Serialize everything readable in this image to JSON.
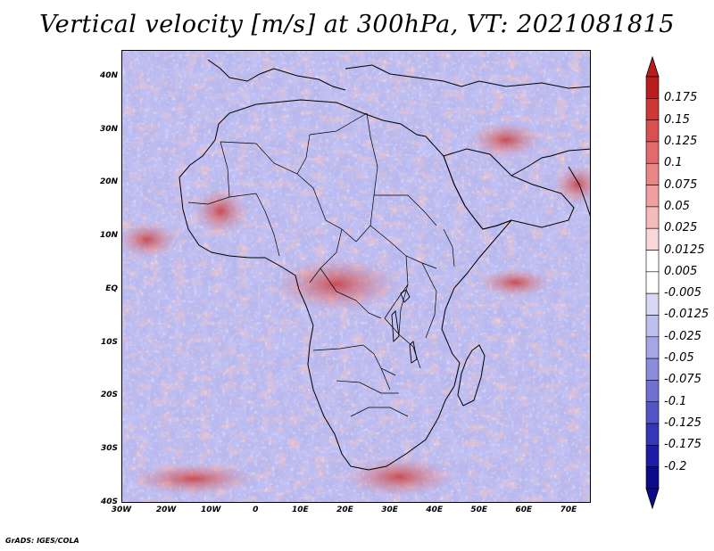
{
  "title": "Vertical velocity [m/s] at 300hPa, VT: 2021081815",
  "footer": "GrADS: IGES/COLA",
  "map": {
    "lon_range": [
      -30,
      75
    ],
    "lat_range": [
      -40,
      45
    ],
    "lat_ticks": [
      {
        "value": 40,
        "label": "40N"
      },
      {
        "value": 30,
        "label": "30N"
      },
      {
        "value": 20,
        "label": "20N"
      },
      {
        "value": 10,
        "label": "10N"
      },
      {
        "value": 0,
        "label": "EQ"
      },
      {
        "value": -10,
        "label": "10S"
      },
      {
        "value": -20,
        "label": "20S"
      },
      {
        "value": -30,
        "label": "30S"
      },
      {
        "value": -40,
        "label": "40S"
      }
    ],
    "lon_ticks": [
      {
        "value": -30,
        "label": "30W"
      },
      {
        "value": -20,
        "label": "20W"
      },
      {
        "value": -10,
        "label": "10W"
      },
      {
        "value": 0,
        "label": "0"
      },
      {
        "value": 10,
        "label": "10E"
      },
      {
        "value": 20,
        "label": "20E"
      },
      {
        "value": 30,
        "label": "30E"
      },
      {
        "value": 40,
        "label": "40E"
      },
      {
        "value": 50,
        "label": "50E"
      },
      {
        "value": 60,
        "label": "60E"
      },
      {
        "value": 70,
        "label": "70E"
      }
    ]
  },
  "colorbar": {
    "levels": [
      "0.175",
      "0.15",
      "0.125",
      "0.1",
      "0.075",
      "0.05",
      "0.025",
      "0.0125",
      "0.005",
      "-0.005",
      "-0.0125",
      "-0.025",
      "-0.05",
      "-0.075",
      "-0.1",
      "-0.125",
      "-0.175",
      "-0.2"
    ],
    "colors": [
      "#b81e1e",
      "#cc3838",
      "#d85050",
      "#e16a6a",
      "#e98686",
      "#f0a0a0",
      "#f5baba",
      "#fad6d6",
      "#ffffff",
      "#ffffff",
      "#d8d8f4",
      "#c0c0ee",
      "#a6a6e6",
      "#8c8cdc",
      "#7070d2",
      "#5454c6",
      "#3636b8",
      "#1c1ca4",
      "#0c0c88"
    ]
  }
}
